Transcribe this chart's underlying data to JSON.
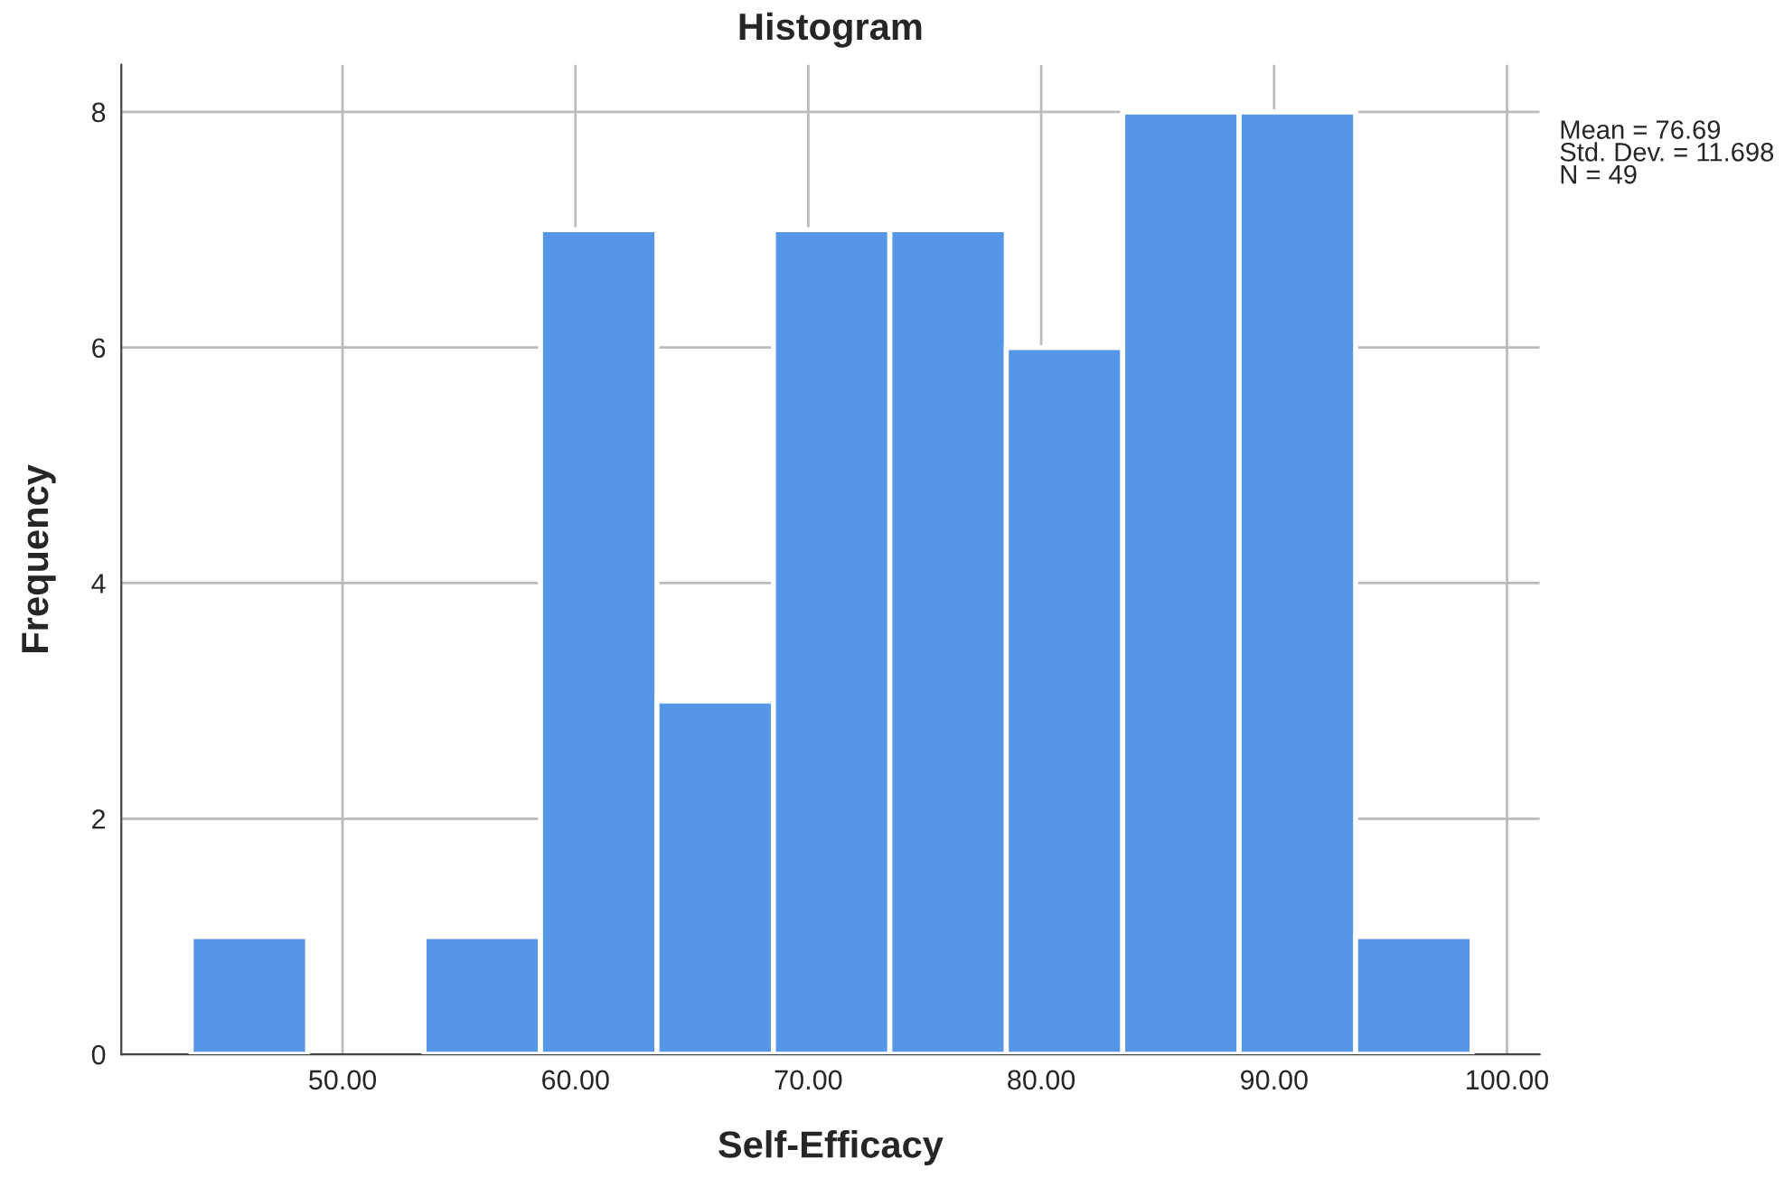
{
  "chart_data": {
    "type": "histogram",
    "title": "Histogram",
    "xlabel": "Self-Efficacy",
    "ylabel": "Frequency",
    "bins": [
      43.5,
      48.5,
      53.5,
      58.5,
      63.5,
      68.5,
      73.5,
      78.5,
      83.5,
      88.5,
      93.5,
      98.5
    ],
    "values": [
      1,
      0,
      1,
      7,
      3,
      7,
      7,
      6,
      8,
      8,
      1
    ],
    "color": "#5596e6",
    "xlim": [
      40.5,
      101.4
    ],
    "ylim": [
      0,
      8.4
    ],
    "xticks": [
      {
        "value": 50,
        "label": "50.00"
      },
      {
        "value": 60,
        "label": "60.00"
      },
      {
        "value": 70,
        "label": "70.00"
      },
      {
        "value": 80,
        "label": "80.00"
      },
      {
        "value": 90,
        "label": "90.00"
      },
      {
        "value": 100,
        "label": "100.00"
      }
    ],
    "yticks": [
      0,
      2,
      4,
      6,
      8
    ],
    "grid": true,
    "annotations": [
      "Mean = 76.69",
      "Std. Dev. = 11.698",
      "N = 49"
    ]
  }
}
